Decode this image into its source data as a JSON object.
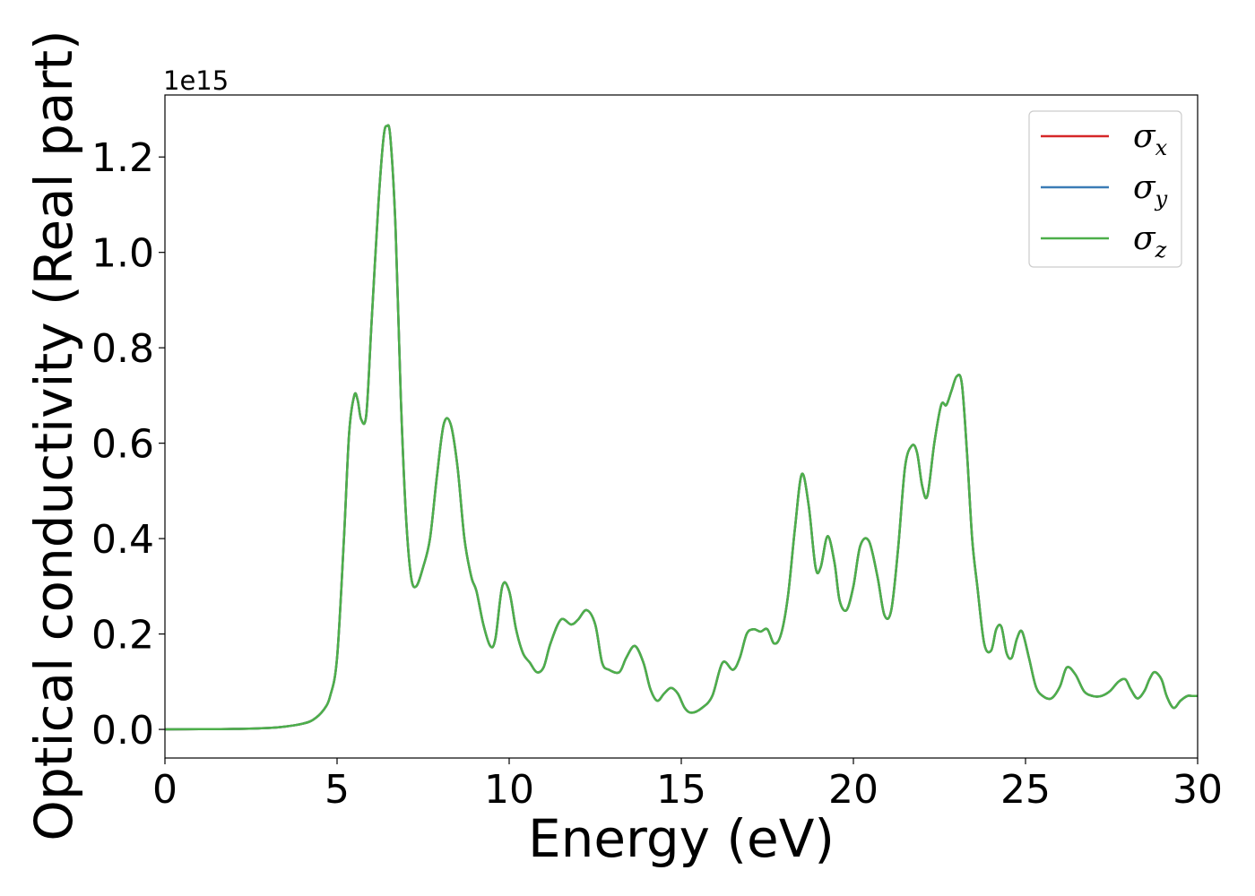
{
  "chart_data": {
    "type": "line",
    "xlabel": "Energy (eV)",
    "ylabel": "Optical conductivity (Real part)",
    "y_offset_label": "1e15",
    "y_scale_factor": 1000000000000000.0,
    "xlim": [
      0,
      30
    ],
    "ylim": [
      -0.06,
      1.33
    ],
    "xticks": [
      0,
      5,
      10,
      15,
      20,
      25,
      30
    ],
    "yticks": [
      0.0,
      0.2,
      0.4,
      0.6,
      0.8,
      1.0,
      1.2
    ],
    "ytick_labels": [
      "0.0",
      "0.2",
      "0.4",
      "0.6",
      "0.8",
      "1.0",
      "1.2"
    ],
    "grid": false,
    "legend_position": "top-right",
    "x": [
      0,
      1,
      2,
      3,
      3.5,
      4,
      4.3,
      4.6,
      4.8,
      5.0,
      5.2,
      5.35,
      5.5,
      5.6,
      5.7,
      5.85,
      6.0,
      6.2,
      6.35,
      6.45,
      6.55,
      6.7,
      6.85,
      7.0,
      7.15,
      7.3,
      7.5,
      7.7,
      7.9,
      8.1,
      8.3,
      8.5,
      8.7,
      8.9,
      9.05,
      9.25,
      9.45,
      9.6,
      9.8,
      10.0,
      10.2,
      10.4,
      10.6,
      10.8,
      11.0,
      11.2,
      11.5,
      11.8,
      12.0,
      12.25,
      12.5,
      12.7,
      12.9,
      13.2,
      13.4,
      13.65,
      13.9,
      14.1,
      14.3,
      14.5,
      14.7,
      14.9,
      15.1,
      15.3,
      15.6,
      15.9,
      16.2,
      16.5,
      16.7,
      16.9,
      17.1,
      17.3,
      17.5,
      17.7,
      17.9,
      18.1,
      18.3,
      18.5,
      18.7,
      18.9,
      19.05,
      19.25,
      19.45,
      19.6,
      19.8,
      20.0,
      20.2,
      20.45,
      20.7,
      20.9,
      21.1,
      21.3,
      21.5,
      21.7,
      21.85,
      22.0,
      22.15,
      22.35,
      22.55,
      22.7,
      22.85,
      23.0,
      23.15,
      23.3,
      23.45,
      23.6,
      23.8,
      24.0,
      24.15,
      24.3,
      24.45,
      24.6,
      24.75,
      24.9,
      25.1,
      25.3,
      25.5,
      25.75,
      26.0,
      26.2,
      26.45,
      26.7,
      26.95,
      27.2,
      27.45,
      27.7,
      27.9,
      28.05,
      28.25,
      28.45,
      28.6,
      28.75,
      28.95,
      29.1,
      29.3,
      29.5,
      29.7,
      29.85,
      30.0
    ],
    "series": [
      {
        "name": "σx",
        "name_base": "σ",
        "name_sub": "x",
        "color": "#d62728",
        "values": [
          0,
          0.0005,
          0.001,
          0.003,
          0.006,
          0.012,
          0.02,
          0.04,
          0.07,
          0.15,
          0.4,
          0.62,
          0.7,
          0.69,
          0.65,
          0.66,
          0.85,
          1.1,
          1.24,
          1.265,
          1.24,
          1.05,
          0.7,
          0.45,
          0.32,
          0.3,
          0.34,
          0.4,
          0.53,
          0.64,
          0.64,
          0.55,
          0.4,
          0.32,
          0.29,
          0.22,
          0.175,
          0.19,
          0.3,
          0.29,
          0.21,
          0.16,
          0.14,
          0.12,
          0.13,
          0.18,
          0.23,
          0.22,
          0.23,
          0.25,
          0.22,
          0.14,
          0.125,
          0.12,
          0.15,
          0.175,
          0.14,
          0.085,
          0.06,
          0.075,
          0.087,
          0.075,
          0.045,
          0.035,
          0.045,
          0.07,
          0.14,
          0.125,
          0.15,
          0.2,
          0.21,
          0.205,
          0.21,
          0.18,
          0.2,
          0.28,
          0.42,
          0.535,
          0.47,
          0.34,
          0.34,
          0.405,
          0.35,
          0.27,
          0.25,
          0.3,
          0.385,
          0.395,
          0.32,
          0.24,
          0.25,
          0.38,
          0.55,
          0.595,
          0.58,
          0.51,
          0.49,
          0.6,
          0.68,
          0.68,
          0.71,
          0.74,
          0.725,
          0.58,
          0.4,
          0.3,
          0.18,
          0.165,
          0.21,
          0.215,
          0.16,
          0.15,
          0.19,
          0.205,
          0.15,
          0.09,
          0.07,
          0.065,
          0.09,
          0.13,
          0.115,
          0.08,
          0.07,
          0.07,
          0.08,
          0.1,
          0.105,
          0.085,
          0.065,
          0.08,
          0.105,
          0.12,
          0.105,
          0.07,
          0.045,
          0.06,
          0.07,
          0.07,
          0.07
        ]
      },
      {
        "name": "σy",
        "name_base": "σ",
        "name_sub": "y",
        "color": "#3b7cb6",
        "values": [
          0,
          0.0005,
          0.001,
          0.003,
          0.006,
          0.012,
          0.02,
          0.04,
          0.07,
          0.15,
          0.4,
          0.62,
          0.7,
          0.69,
          0.65,
          0.66,
          0.85,
          1.1,
          1.24,
          1.265,
          1.24,
          1.05,
          0.7,
          0.45,
          0.32,
          0.3,
          0.34,
          0.4,
          0.53,
          0.64,
          0.64,
          0.55,
          0.4,
          0.32,
          0.29,
          0.22,
          0.175,
          0.19,
          0.3,
          0.29,
          0.21,
          0.16,
          0.14,
          0.12,
          0.13,
          0.18,
          0.23,
          0.22,
          0.23,
          0.25,
          0.22,
          0.14,
          0.125,
          0.12,
          0.15,
          0.175,
          0.14,
          0.085,
          0.06,
          0.075,
          0.087,
          0.075,
          0.045,
          0.035,
          0.045,
          0.07,
          0.14,
          0.125,
          0.15,
          0.2,
          0.21,
          0.205,
          0.21,
          0.18,
          0.2,
          0.28,
          0.42,
          0.535,
          0.47,
          0.34,
          0.34,
          0.405,
          0.35,
          0.27,
          0.25,
          0.3,
          0.385,
          0.395,
          0.32,
          0.24,
          0.25,
          0.38,
          0.55,
          0.595,
          0.58,
          0.51,
          0.49,
          0.6,
          0.68,
          0.68,
          0.71,
          0.74,
          0.725,
          0.58,
          0.4,
          0.3,
          0.18,
          0.165,
          0.21,
          0.215,
          0.16,
          0.15,
          0.19,
          0.205,
          0.15,
          0.09,
          0.07,
          0.065,
          0.09,
          0.13,
          0.115,
          0.08,
          0.07,
          0.07,
          0.08,
          0.1,
          0.105,
          0.085,
          0.065,
          0.08,
          0.105,
          0.12,
          0.105,
          0.07,
          0.045,
          0.06,
          0.07,
          0.07,
          0.07
        ]
      },
      {
        "name": "σz",
        "name_base": "σ",
        "name_sub": "z",
        "color": "#4daf4a",
        "values": [
          0,
          0.0005,
          0.001,
          0.003,
          0.006,
          0.012,
          0.02,
          0.04,
          0.07,
          0.15,
          0.4,
          0.62,
          0.7,
          0.69,
          0.65,
          0.66,
          0.85,
          1.1,
          1.24,
          1.265,
          1.24,
          1.05,
          0.7,
          0.45,
          0.32,
          0.3,
          0.34,
          0.4,
          0.53,
          0.64,
          0.64,
          0.55,
          0.4,
          0.32,
          0.29,
          0.22,
          0.175,
          0.19,
          0.3,
          0.29,
          0.21,
          0.16,
          0.14,
          0.12,
          0.13,
          0.18,
          0.23,
          0.22,
          0.23,
          0.25,
          0.22,
          0.14,
          0.125,
          0.12,
          0.15,
          0.175,
          0.14,
          0.085,
          0.06,
          0.075,
          0.087,
          0.075,
          0.045,
          0.035,
          0.045,
          0.07,
          0.14,
          0.125,
          0.15,
          0.2,
          0.21,
          0.205,
          0.21,
          0.18,
          0.2,
          0.28,
          0.42,
          0.535,
          0.47,
          0.34,
          0.34,
          0.405,
          0.35,
          0.27,
          0.25,
          0.3,
          0.385,
          0.395,
          0.32,
          0.24,
          0.25,
          0.38,
          0.55,
          0.595,
          0.58,
          0.51,
          0.49,
          0.6,
          0.68,
          0.68,
          0.71,
          0.74,
          0.725,
          0.58,
          0.4,
          0.3,
          0.18,
          0.165,
          0.21,
          0.215,
          0.16,
          0.15,
          0.19,
          0.205,
          0.15,
          0.09,
          0.07,
          0.065,
          0.09,
          0.13,
          0.115,
          0.08,
          0.07,
          0.07,
          0.08,
          0.1,
          0.105,
          0.085,
          0.065,
          0.08,
          0.105,
          0.12,
          0.105,
          0.07,
          0.045,
          0.06,
          0.07,
          0.07,
          0.07
        ]
      }
    ]
  }
}
